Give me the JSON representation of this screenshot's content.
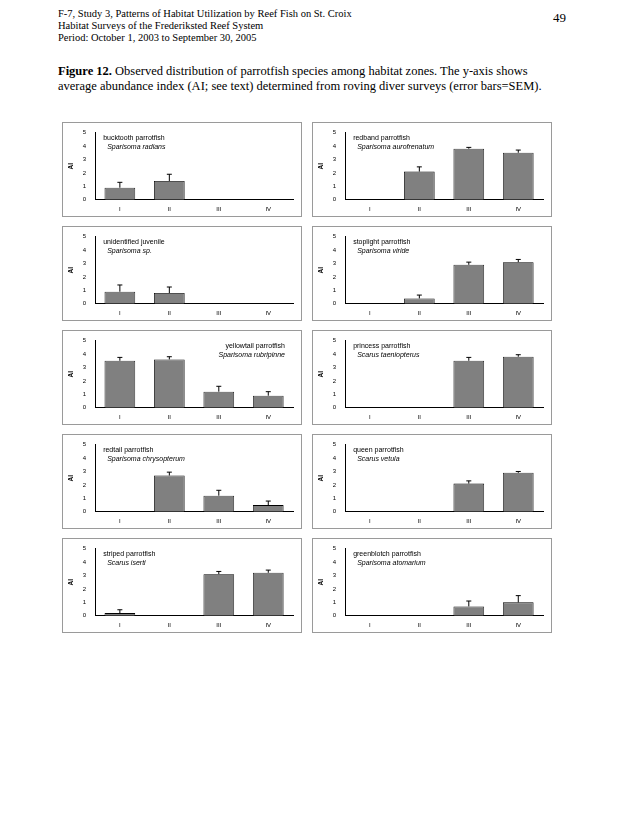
{
  "header": {
    "lines": [
      "F-7, Study 3, Patterns of Habitat Utilization by Reef Fish on St. Croix",
      "Habitat Surveys of the Frederiksted Reef System",
      "Period: October 1, 2003 to September 30, 2005"
    ],
    "page": "49"
  },
  "caption": {
    "label": "Figure 12.",
    "text": "Observed distribution of parrotfish species among habitat zones.  The y-axis shows average abundance index (AI; see text) determined from roving diver surveys (error bars=SEM)."
  },
  "chart_data": [
    {
      "type": "bar",
      "title": "bucktooth parrotfish",
      "subtitle": "Sparisoma radians",
      "categories": [
        "I",
        "II",
        "III",
        "IV"
      ],
      "values": [
        0.9,
        1.4,
        0,
        0
      ],
      "errors": [
        0.4,
        0.5,
        null,
        null
      ],
      "color": "#808080",
      "y_label": "AI",
      "ylim": [
        0,
        5
      ],
      "yticks": [
        0,
        1,
        2,
        3,
        4,
        5
      ],
      "grid": false
    },
    {
      "type": "bar",
      "title": "redband parrotfish",
      "subtitle": "Sparisoma aurofrenatum",
      "categories": [
        "I",
        "II",
        "III",
        "IV"
      ],
      "values": [
        0,
        2.1,
        3.8,
        3.5
      ],
      "errors": [
        null,
        0.35,
        0.1,
        0.2
      ],
      "color": "#808080",
      "y_label": "AI",
      "ylim": [
        0,
        5
      ],
      "yticks": [
        0,
        1,
        2,
        3,
        4,
        5
      ],
      "grid": false
    },
    {
      "type": "bar",
      "title": "unidentified juvenile",
      "subtitle": "Sparisoma sp.",
      "categories": [
        "I",
        "II",
        "III",
        "IV"
      ],
      "values": [
        0.9,
        0.8,
        0,
        0
      ],
      "errors": [
        0.5,
        0.45,
        null,
        null
      ],
      "color": "#808080",
      "y_label": "AI",
      "ylim": [
        0,
        5
      ],
      "yticks": [
        0,
        1,
        2,
        3,
        4,
        5
      ],
      "grid": false
    },
    {
      "type": "bar",
      "title": "stoplight parrotfish",
      "subtitle": "Sparisoma viride",
      "categories": [
        "I",
        "II",
        "III",
        "IV"
      ],
      "values": [
        0,
        0.4,
        2.9,
        3.1
      ],
      "errors": [
        null,
        0.25,
        0.2,
        0.2
      ],
      "color": "#808080",
      "y_label": "AI",
      "ylim": [
        0,
        5
      ],
      "yticks": [
        0,
        1,
        2,
        3,
        4,
        5
      ],
      "grid": false
    },
    {
      "type": "bar",
      "title": "yellowtail parrotfish",
      "subtitle": "Sparisoma rubripinne",
      "categories": [
        "I",
        "II",
        "III",
        "IV"
      ],
      "values": [
        3.5,
        3.6,
        1.2,
        0.9
      ],
      "errors": [
        0.25,
        0.2,
        0.4,
        0.3
      ],
      "color": "#808080",
      "y_label": "AI",
      "ylim": [
        0,
        5
      ],
      "yticks": [
        0,
        1,
        2,
        3,
        4,
        5
      ],
      "grid": false
    },
    {
      "type": "bar",
      "title": "princess parrotfish",
      "subtitle": "Scarus taeniopterus",
      "categories": [
        "I",
        "II",
        "III",
        "IV"
      ],
      "values": [
        0,
        0,
        3.5,
        3.8
      ],
      "errors": [
        null,
        null,
        0.25,
        0.15
      ],
      "color": "#808080",
      "y_label": "AI",
      "ylim": [
        0,
        5
      ],
      "yticks": [
        0,
        1,
        2,
        3,
        4,
        5
      ],
      "grid": false
    },
    {
      "type": "bar",
      "title": "redtail parrotfish",
      "subtitle": "Sparisoma chrysopterum",
      "categories": [
        "I",
        "II",
        "III",
        "IV"
      ],
      "values": [
        0,
        2.7,
        1.2,
        0.5
      ],
      "errors": [
        null,
        0.25,
        0.4,
        0.3
      ],
      "color": "#808080",
      "y_label": "AI",
      "ylim": [
        0,
        5
      ],
      "yticks": [
        0,
        1,
        2,
        3,
        4,
        5
      ],
      "grid": false
    },
    {
      "type": "bar",
      "title": "queen parrotfish",
      "subtitle": "Scarus vetula",
      "categories": [
        "I",
        "II",
        "III",
        "IV"
      ],
      "values": [
        0,
        0,
        2.1,
        2.9
      ],
      "errors": [
        null,
        null,
        0.2,
        0.1
      ],
      "color": "#808080",
      "y_label": "AI",
      "ylim": [
        0,
        5
      ],
      "yticks": [
        0,
        1,
        2,
        3,
        4,
        5
      ],
      "grid": false
    },
    {
      "type": "bar",
      "title": "striped parrotfish",
      "subtitle": "Scarus iserti",
      "categories": [
        "I",
        "II",
        "III",
        "IV"
      ],
      "values": [
        0.2,
        0,
        3.1,
        3.2
      ],
      "errors": [
        0.25,
        null,
        0.2,
        0.2
      ],
      "color": "#808080",
      "y_label": "AI",
      "ylim": [
        0,
        5
      ],
      "yticks": [
        0,
        1,
        2,
        3,
        4,
        5
      ],
      "grid": false
    },
    {
      "type": "bar",
      "title": "greenblotch parrotfish",
      "subtitle": "Sparisoma atomarium",
      "categories": [
        "I",
        "II",
        "III",
        "IV"
      ],
      "values": [
        0,
        0,
        0.7,
        1.0
      ],
      "errors": [
        null,
        null,
        0.4,
        0.5
      ],
      "color": "#808080",
      "y_label": "AI",
      "ylim": [
        0,
        5
      ],
      "yticks": [
        0,
        1,
        2,
        3,
        4,
        5
      ],
      "grid": false
    }
  ]
}
